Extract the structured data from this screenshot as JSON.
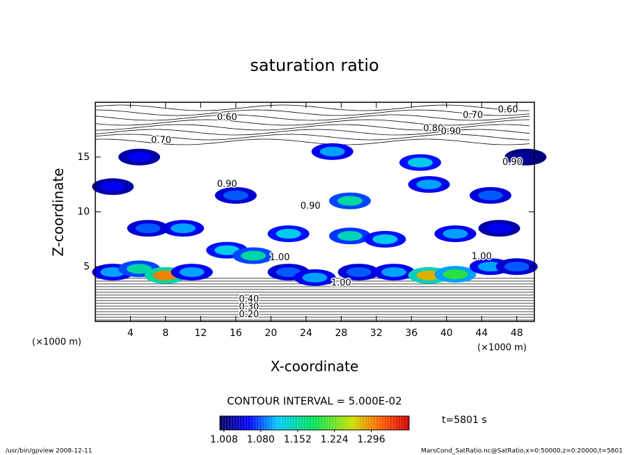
{
  "chart_data": {
    "type": "contour",
    "title": "saturation ratio",
    "x_label": "X-coordinate",
    "y_label": "Z-coordinate",
    "x_unit": "(×1000 m)",
    "y_unit": "(×1000 m)",
    "xlim": [
      0,
      50
    ],
    "ylim": [
      0,
      20
    ],
    "xticks": [
      4,
      8,
      12,
      16,
      20,
      24,
      28,
      32,
      36,
      40,
      44,
      48
    ],
    "yticks": [
      5,
      10,
      15
    ],
    "contour_interval": "CONTOUR INTERVAL = 5.000E-02",
    "time_label": "t=5801 s",
    "footer_left": "/usr/bin/gpview  2008-12-11",
    "footer_right": "MarsCond_SatRatio.nc@SatRatio,x=0:50000,z=0:20000,t=5801",
    "colorbar": {
      "lim": [
        1.0,
        1.37
      ],
      "ticks": [
        {
          "value": 1.008,
          "label": "1.008"
        },
        {
          "value": 1.08,
          "label": "1.080"
        },
        {
          "value": 1.152,
          "label": "1.152"
        },
        {
          "value": 1.224,
          "label": "1.224"
        },
        {
          "value": 1.296,
          "label": "1.296"
        }
      ]
    },
    "patches": {
      "x": [
        2,
        5,
        8,
        11,
        15,
        18,
        22,
        25,
        30,
        34,
        38,
        41,
        45,
        48,
        22,
        29,
        33,
        10,
        6,
        41,
        46,
        16,
        29,
        45,
        2,
        38,
        5,
        27,
        37,
        49
      ],
      "z": [
        4.5,
        4.8,
        4.2,
        4.5,
        6.5,
        6,
        4.5,
        4,
        4.5,
        4.5,
        4.2,
        4.3,
        5,
        5,
        8,
        7.8,
        7.5,
        8.5,
        8.5,
        8,
        8.5,
        11.5,
        11,
        11.5,
        12.3,
        12.5,
        15,
        15.5,
        14.5,
        15
      ],
      "value": [
        1.1,
        1.15,
        1.3,
        1.1,
        1.12,
        1.15,
        1.08,
        1.1,
        1.08,
        1.1,
        1.28,
        1.2,
        1.1,
        1.08,
        1.12,
        1.14,
        1.12,
        1.1,
        1.08,
        1.1,
        1.05,
        1.08,
        1.15,
        1.08,
        1.05,
        1.1,
        1.05,
        1.1,
        1.12,
        1.02
      ]
    },
    "contour_labels": [
      {
        "x": 15,
        "z": 18.6,
        "level": {
          "value": 0.6,
          "label": "0.60"
        }
      },
      {
        "x": 47,
        "z": 19.3,
        "level": {
          "value": 0.6,
          "label": "0.60"
        }
      },
      {
        "x": 43,
        "z": 18.8,
        "level": {
          "value": 0.7,
          "label": "0.70"
        }
      },
      {
        "x": 38.5,
        "z": 17.6,
        "level": {
          "value": 0.8,
          "label": "0.80"
        }
      },
      {
        "x": 40.5,
        "z": 17.3,
        "level": {
          "value": 0.9,
          "label": "0.90"
        }
      },
      {
        "x": 7.5,
        "z": 16.5,
        "level": {
          "value": 0.7,
          "label": "0.70"
        }
      },
      {
        "x": 47.5,
        "z": 14.5,
        "level": {
          "value": 0.9,
          "label": "0.90"
        }
      },
      {
        "x": 15,
        "z": 12.5,
        "level": {
          "value": 0.9,
          "label": "0.90"
        }
      },
      {
        "x": 24.5,
        "z": 10.5,
        "level": {
          "value": 0.9,
          "label": "0.90"
        }
      },
      {
        "x": 21,
        "z": 5.8,
        "level": {
          "value": 1.0,
          "label": "1.00"
        }
      },
      {
        "x": 44,
        "z": 5.9,
        "level": {
          "value": 1.0,
          "label": "1.00"
        }
      },
      {
        "x": 28,
        "z": 3.5,
        "level": {
          "value": 1.0,
          "label": "1.00"
        }
      },
      {
        "x": 17.5,
        "z": 2.0,
        "level": {
          "value": 0.4,
          "label": "0.40"
        }
      },
      {
        "x": 17.5,
        "z": 1.3,
        "level": {
          "value": 0.3,
          "label": "0.30"
        }
      },
      {
        "x": 17.5,
        "z": 0.6,
        "level": {
          "value": 0.2,
          "label": "0.20"
        }
      }
    ]
  }
}
